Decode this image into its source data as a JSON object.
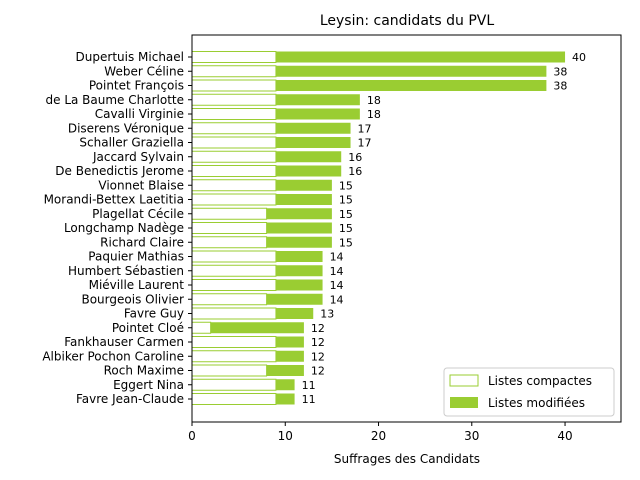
{
  "chart_data": {
    "type": "bar",
    "orientation": "horizontal",
    "stacked": true,
    "title": "Leysin: candidats du PVL",
    "xlabel": "Suffrages des Candidats",
    "ylabel": "",
    "xlim": [
      0,
      46
    ],
    "x_ticks": [
      0,
      10,
      20,
      30,
      40
    ],
    "grid": false,
    "legend_position": "lower-right",
    "categories": [
      "Dupertuis Michael",
      "Weber Céline",
      "Pointet François",
      "de La Baume Charlotte",
      "Cavalli Virginie",
      "Diserens Véronique",
      "Schaller Graziella",
      "Jaccard Sylvain",
      "De Benedictis Jerome",
      "Vionnet Blaise",
      "Morandi-Bettex Laetitia",
      "Plagellat Cécile",
      "Longchamp Nadège",
      "Richard Claire",
      "Paquier Mathias",
      "Humbert Sébastien",
      "Miéville Laurent",
      "Bourgeois Olivier",
      "Favre Guy",
      "Pointet Cloé",
      "Fankhauser Carmen",
      "Albiker Pochon Caroline",
      "Roch Maxime",
      "Eggert Nina",
      "Favre Jean-Claude"
    ],
    "series": [
      {
        "name": "Listes compactes",
        "color": "#ffffff",
        "edgecolor": "#9acd32",
        "values": [
          9,
          9,
          9,
          9,
          9,
          9,
          9,
          9,
          9,
          9,
          9,
          8,
          8,
          8,
          9,
          9,
          9,
          8,
          9,
          2,
          9,
          9,
          8,
          9,
          9
        ]
      },
      {
        "name": "Listes modifiées",
        "color": "#9acd32",
        "values": [
          31,
          29,
          29,
          9,
          9,
          8,
          8,
          7,
          7,
          6,
          6,
          7,
          7,
          7,
          5,
          5,
          5,
          6,
          4,
          10,
          3,
          3,
          4,
          2,
          2
        ]
      }
    ],
    "totals": [
      40,
      38,
      38,
      18,
      18,
      17,
      17,
      16,
      16,
      15,
      15,
      15,
      15,
      15,
      14,
      14,
      14,
      14,
      13,
      12,
      12,
      12,
      12,
      11,
      11
    ]
  }
}
